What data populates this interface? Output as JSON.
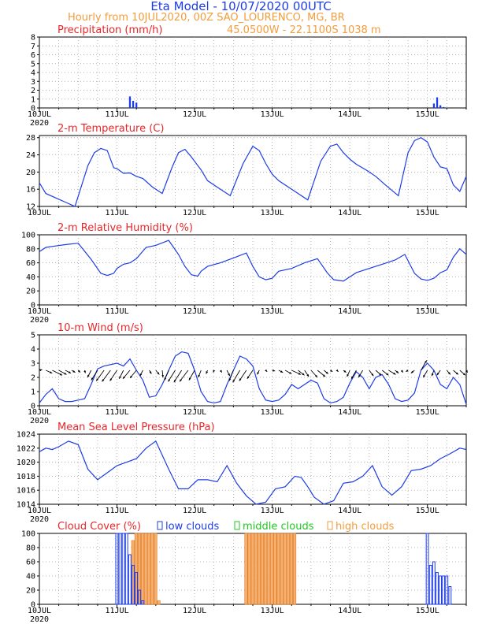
{
  "header": {
    "model_title": "Eta Model - 10/07/2020 00UTC",
    "hourly_line": "Hourly from 10JUL2020, 00Z  SAO_LOURENCO, MG, BR",
    "coords_line": "45.0500W - 22.1100S   1038  m"
  },
  "x_axis": {
    "labels": [
      "10JUL",
      "11JUL",
      "12JUL",
      "13JUL",
      "14JUL",
      "15JUL"
    ],
    "year": "2020",
    "range_hours": [
      0,
      132
    ]
  },
  "colors": {
    "line": "#1c3ce6",
    "title_red": "#e8262a",
    "orange": "#f39c3c",
    "blue_title": "#1c3ce6",
    "green": "#1fc81f",
    "high_fill": "#f5b070",
    "axis": "#000000"
  },
  "chart_data": [
    {
      "id": "precip",
      "type": "bar",
      "title": "Precipitation (mm/h)",
      "ylim": [
        0,
        8
      ],
      "yticks": [
        0,
        1,
        2,
        3,
        4,
        5,
        6,
        7,
        8
      ],
      "x": [
        28,
        29,
        30,
        122,
        123,
        124,
        125,
        126
      ],
      "values": [
        1.3,
        0.8,
        0.6,
        0.5,
        1.2,
        0.3,
        0.1,
        0.05
      ]
    },
    {
      "id": "temp",
      "type": "line",
      "title": "2-m Temperature (C)",
      "ylim": [
        12,
        28.5
      ],
      "yticks": [
        12,
        16,
        20,
        24,
        28
      ],
      "x": [
        0,
        2,
        5,
        8,
        11,
        15,
        17,
        19,
        21,
        23,
        24,
        26,
        28,
        30,
        32,
        35,
        38,
        41,
        43,
        45,
        47,
        49,
        50,
        52,
        55,
        59,
        63,
        66,
        68,
        70,
        72,
        74,
        77,
        80,
        83,
        87,
        90,
        92,
        94,
        96,
        98,
        101,
        104,
        107,
        111,
        114,
        116,
        118,
        120,
        122,
        124,
        126,
        128,
        130,
        132
      ],
      "values": [
        17.5,
        15.0,
        14.0,
        13.0,
        12.0,
        21.5,
        24.5,
        25.5,
        25.0,
        21.0,
        20.8,
        19.7,
        19.8,
        19.0,
        18.5,
        16.5,
        15.0,
        21.0,
        24.5,
        25.3,
        23.5,
        21.5,
        20.5,
        18.0,
        16.5,
        14.5,
        22.0,
        26.0,
        25.0,
        22.0,
        19.5,
        18.0,
        16.5,
        15.0,
        13.5,
        22.5,
        26.0,
        26.5,
        24.5,
        23.0,
        21.8,
        20.5,
        19.0,
        17.0,
        14.5,
        24.5,
        27.3,
        28.0,
        27.0,
        23.5,
        21.2,
        20.8,
        17.0,
        15.5,
        19.0
      ]
    },
    {
      "id": "rh",
      "type": "line",
      "title": "2-m Relative Humidity (%)",
      "ylim": [
        0,
        100
      ],
      "yticks": [
        0,
        20,
        40,
        60,
        80,
        100
      ],
      "x": [
        0,
        2,
        5,
        8,
        12,
        16,
        19,
        21,
        23,
        24,
        26,
        28,
        30,
        33,
        36,
        40,
        43,
        45,
        47,
        49,
        50,
        52,
        56,
        60,
        64,
        66,
        68,
        70,
        72,
        74,
        78,
        82,
        86,
        89,
        91,
        94,
        96,
        98,
        102,
        106,
        110,
        113,
        116,
        118,
        120,
        122,
        124,
        126,
        128,
        130,
        132
      ],
      "values": [
        76,
        82,
        84,
        86,
        88,
        65,
        45,
        42,
        45,
        52,
        58,
        60,
        66,
        82,
        85,
        92,
        72,
        55,
        43,
        41,
        48,
        55,
        60,
        67,
        74,
        55,
        40,
        36,
        38,
        48,
        52,
        60,
        66,
        46,
        36,
        34,
        40,
        46,
        52,
        58,
        64,
        72,
        45,
        37,
        35,
        38,
        46,
        50,
        68,
        80,
        72
      ]
    },
    {
      "id": "wind",
      "type": "line",
      "title": "10-m Wind (m/s)",
      "ylim": [
        0,
        5
      ],
      "yticks": [
        0,
        1,
        2,
        3,
        4,
        5
      ],
      "x": [
        0,
        2,
        4,
        6,
        8,
        10,
        12,
        14,
        16,
        18,
        20,
        22,
        24,
        26,
        28,
        30,
        32,
        34,
        36,
        38,
        40,
        42,
        44,
        46,
        48,
        50,
        52,
        54,
        56,
        58,
        60,
        62,
        64,
        66,
        68,
        70,
        72,
        74,
        76,
        78,
        80,
        82,
        84,
        86,
        88,
        90,
        92,
        94,
        96,
        98,
        100,
        102,
        104,
        106,
        108,
        110,
        112,
        114,
        116,
        118,
        120,
        122,
        124,
        126,
        128,
        130,
        132
      ],
      "values": [
        0.2,
        0.8,
        1.2,
        0.5,
        0.3,
        0.3,
        0.4,
        0.5,
        1.5,
        2.6,
        2.8,
        2.9,
        3.0,
        2.8,
        3.3,
        2.5,
        1.8,
        0.6,
        0.7,
        1.5,
        2.5,
        3.5,
        3.8,
        3.7,
        2.5,
        1.0,
        0.3,
        0.2,
        0.3,
        1.5,
        2.5,
        3.5,
        3.3,
        2.8,
        1.2,
        0.4,
        0.3,
        0.4,
        0.8,
        1.5,
        1.2,
        1.5,
        1.8,
        1.6,
        0.5,
        0.2,
        0.3,
        0.6,
        1.6,
        2.4,
        2.0,
        1.2,
        2.0,
        2.2,
        1.5,
        0.5,
        0.3,
        0.4,
        0.9,
        2.5,
        3.0,
        2.5,
        1.5,
        1.2,
        2.0,
        1.5,
        0.1
      ],
      "vectors": {
        "x": [
          0,
          2,
          4,
          6,
          8,
          10,
          12,
          14,
          16,
          18,
          20,
          22,
          24,
          26,
          28,
          30,
          32,
          34,
          36,
          38,
          40,
          42,
          44,
          46,
          48,
          50,
          52,
          54,
          56,
          58,
          60,
          62,
          64,
          66,
          68,
          70,
          72,
          74,
          76,
          78,
          80,
          82,
          84,
          86,
          88,
          90,
          92,
          94,
          96,
          98,
          100,
          102,
          104,
          106,
          108,
          110,
          112,
          114,
          116,
          118,
          120,
          122,
          124,
          126,
          128,
          130,
          132
        ],
        "u": [
          0.4,
          0.9,
          1.4,
          1.1,
          0.8,
          0.5,
          0.3,
          0.1,
          -0.5,
          -0.9,
          -1.1,
          -1.2,
          -1.0,
          -0.6,
          -1.0,
          -0.9,
          -0.4,
          0.3,
          0.5,
          0.1,
          -0.6,
          -1.0,
          -1.1,
          -1.2,
          -0.8,
          -0.4,
          -0.2,
          -0.1,
          0.2,
          0.4,
          -0.6,
          -1.0,
          -1.0,
          -0.8,
          -0.3,
          0.2,
          0.4,
          0.6,
          0.9,
          1.3,
          0.9,
          0.6,
          0.9,
          1.1,
          0.6,
          0.3,
          0.2,
          0.4,
          -0.4,
          -0.7,
          -0.6,
          0.6,
          0.8,
          0.9,
          1.0,
          0.5,
          0.2,
          -0.3,
          -0.5,
          0.8,
          -0.6,
          -0.3,
          -0.5,
          0.5,
          0.7,
          0.8,
          0.2
        ],
        "v": [
          0.1,
          -0.4,
          -0.7,
          -0.6,
          -0.4,
          -0.3,
          -0.3,
          -0.4,
          -1.0,
          -1.4,
          -1.5,
          -1.6,
          -1.5,
          -1.2,
          -1.2,
          -1.1,
          -0.8,
          -0.5,
          -0.6,
          -1.0,
          -1.4,
          -1.6,
          -1.7,
          -1.6,
          -1.4,
          -1.0,
          -0.5,
          -0.3,
          -0.3,
          -0.8,
          -1.5,
          -1.7,
          -1.5,
          -1.2,
          -0.6,
          -0.2,
          -0.1,
          -0.3,
          -0.5,
          -0.6,
          -0.7,
          -0.9,
          -1.0,
          -0.9,
          -0.5,
          -0.2,
          -0.2,
          -0.3,
          -0.9,
          -1.2,
          -1.0,
          -0.8,
          -0.7,
          -0.7,
          -0.6,
          -0.4,
          -0.3,
          -0.2,
          -0.4,
          1.4,
          -1.0,
          -0.8,
          -0.7,
          -0.6,
          -0.6,
          -0.7,
          -0.3
        ]
      }
    },
    {
      "id": "mslp",
      "type": "line",
      "title": "Mean Sea Level Pressure (hPa)",
      "ylim": [
        1014,
        1024
      ],
      "yticks": [
        1014,
        1016,
        1018,
        1020,
        1022,
        1024
      ],
      "x": [
        0,
        2,
        4,
        6,
        9,
        12,
        15,
        18,
        21,
        24,
        27,
        30,
        33,
        36,
        40,
        43,
        46,
        49,
        52,
        55,
        58,
        61,
        64,
        67,
        70,
        73,
        76,
        79,
        81,
        83,
        85,
        88,
        91,
        94,
        97,
        100,
        103,
        106,
        109,
        112,
        115,
        118,
        121,
        124,
        127,
        130,
        132
      ],
      "values": [
        1021.5,
        1022.0,
        1021.8,
        1022.2,
        1023.0,
        1022.5,
        1019.0,
        1017.5,
        1018.5,
        1019.5,
        1020.0,
        1020.5,
        1022.0,
        1023.0,
        1019.0,
        1016.2,
        1016.2,
        1017.5,
        1017.5,
        1017.2,
        1019.5,
        1017.0,
        1015.2,
        1014.0,
        1014.3,
        1016.2,
        1016.5,
        1018.0,
        1017.8,
        1016.5,
        1015.0,
        1014.0,
        1014.5,
        1017.0,
        1017.2,
        1018.0,
        1019.5,
        1016.5,
        1015.3,
        1016.5,
        1018.8,
        1019.0,
        1019.5,
        1020.5,
        1021.2,
        1022.0,
        1021.8
      ]
    },
    {
      "id": "cloud",
      "type": "bar",
      "title": "Cloud Cover (%)",
      "ylim": [
        0,
        100
      ],
      "yticks": [
        0,
        20,
        40,
        60,
        80,
        100
      ],
      "legend": [
        "low clouds",
        "middle clouds",
        "high clouds"
      ],
      "low": {
        "x": [
          24,
          25,
          26,
          27,
          28,
          29,
          30,
          31,
          32,
          120,
          121,
          122,
          123,
          124,
          125,
          126,
          127
        ],
        "values": [
          100,
          100,
          100,
          100,
          70,
          55,
          45,
          20,
          5,
          100,
          55,
          60,
          45,
          40,
          40,
          40,
          25
        ]
      },
      "high": {
        "x": [
          29,
          30,
          31,
          32,
          33,
          34,
          35,
          36,
          37,
          64,
          65,
          66,
          67,
          68,
          69,
          70,
          71,
          72,
          73,
          74,
          75,
          76,
          77,
          78,
          79
        ],
        "values": [
          90,
          100,
          100,
          100,
          100,
          100,
          100,
          100,
          5,
          100,
          100,
          100,
          100,
          100,
          100,
          100,
          100,
          100,
          100,
          100,
          100,
          100,
          100,
          100,
          100
        ]
      }
    }
  ]
}
